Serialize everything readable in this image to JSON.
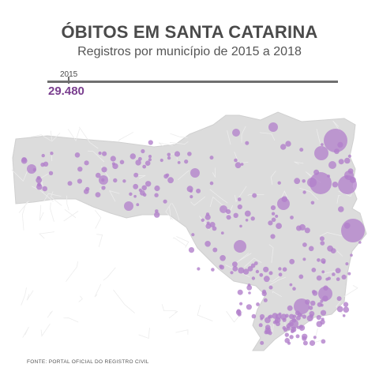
{
  "header": {
    "title": "ÓBITOS EM SANTA CATARINA",
    "subtitle": "Registros por município de 2015 a 2018"
  },
  "timeline": {
    "year": "2015",
    "total": "29.480"
  },
  "footer": {
    "source": "FONTE: PORTAL OFICIAL DO REGISTRO CIVIL"
  },
  "colors": {
    "land": "#dcdcdc",
    "border": "#ececec",
    "bubble": "#b27fcb",
    "bubble_text": "#7a3f8f"
  }
}
